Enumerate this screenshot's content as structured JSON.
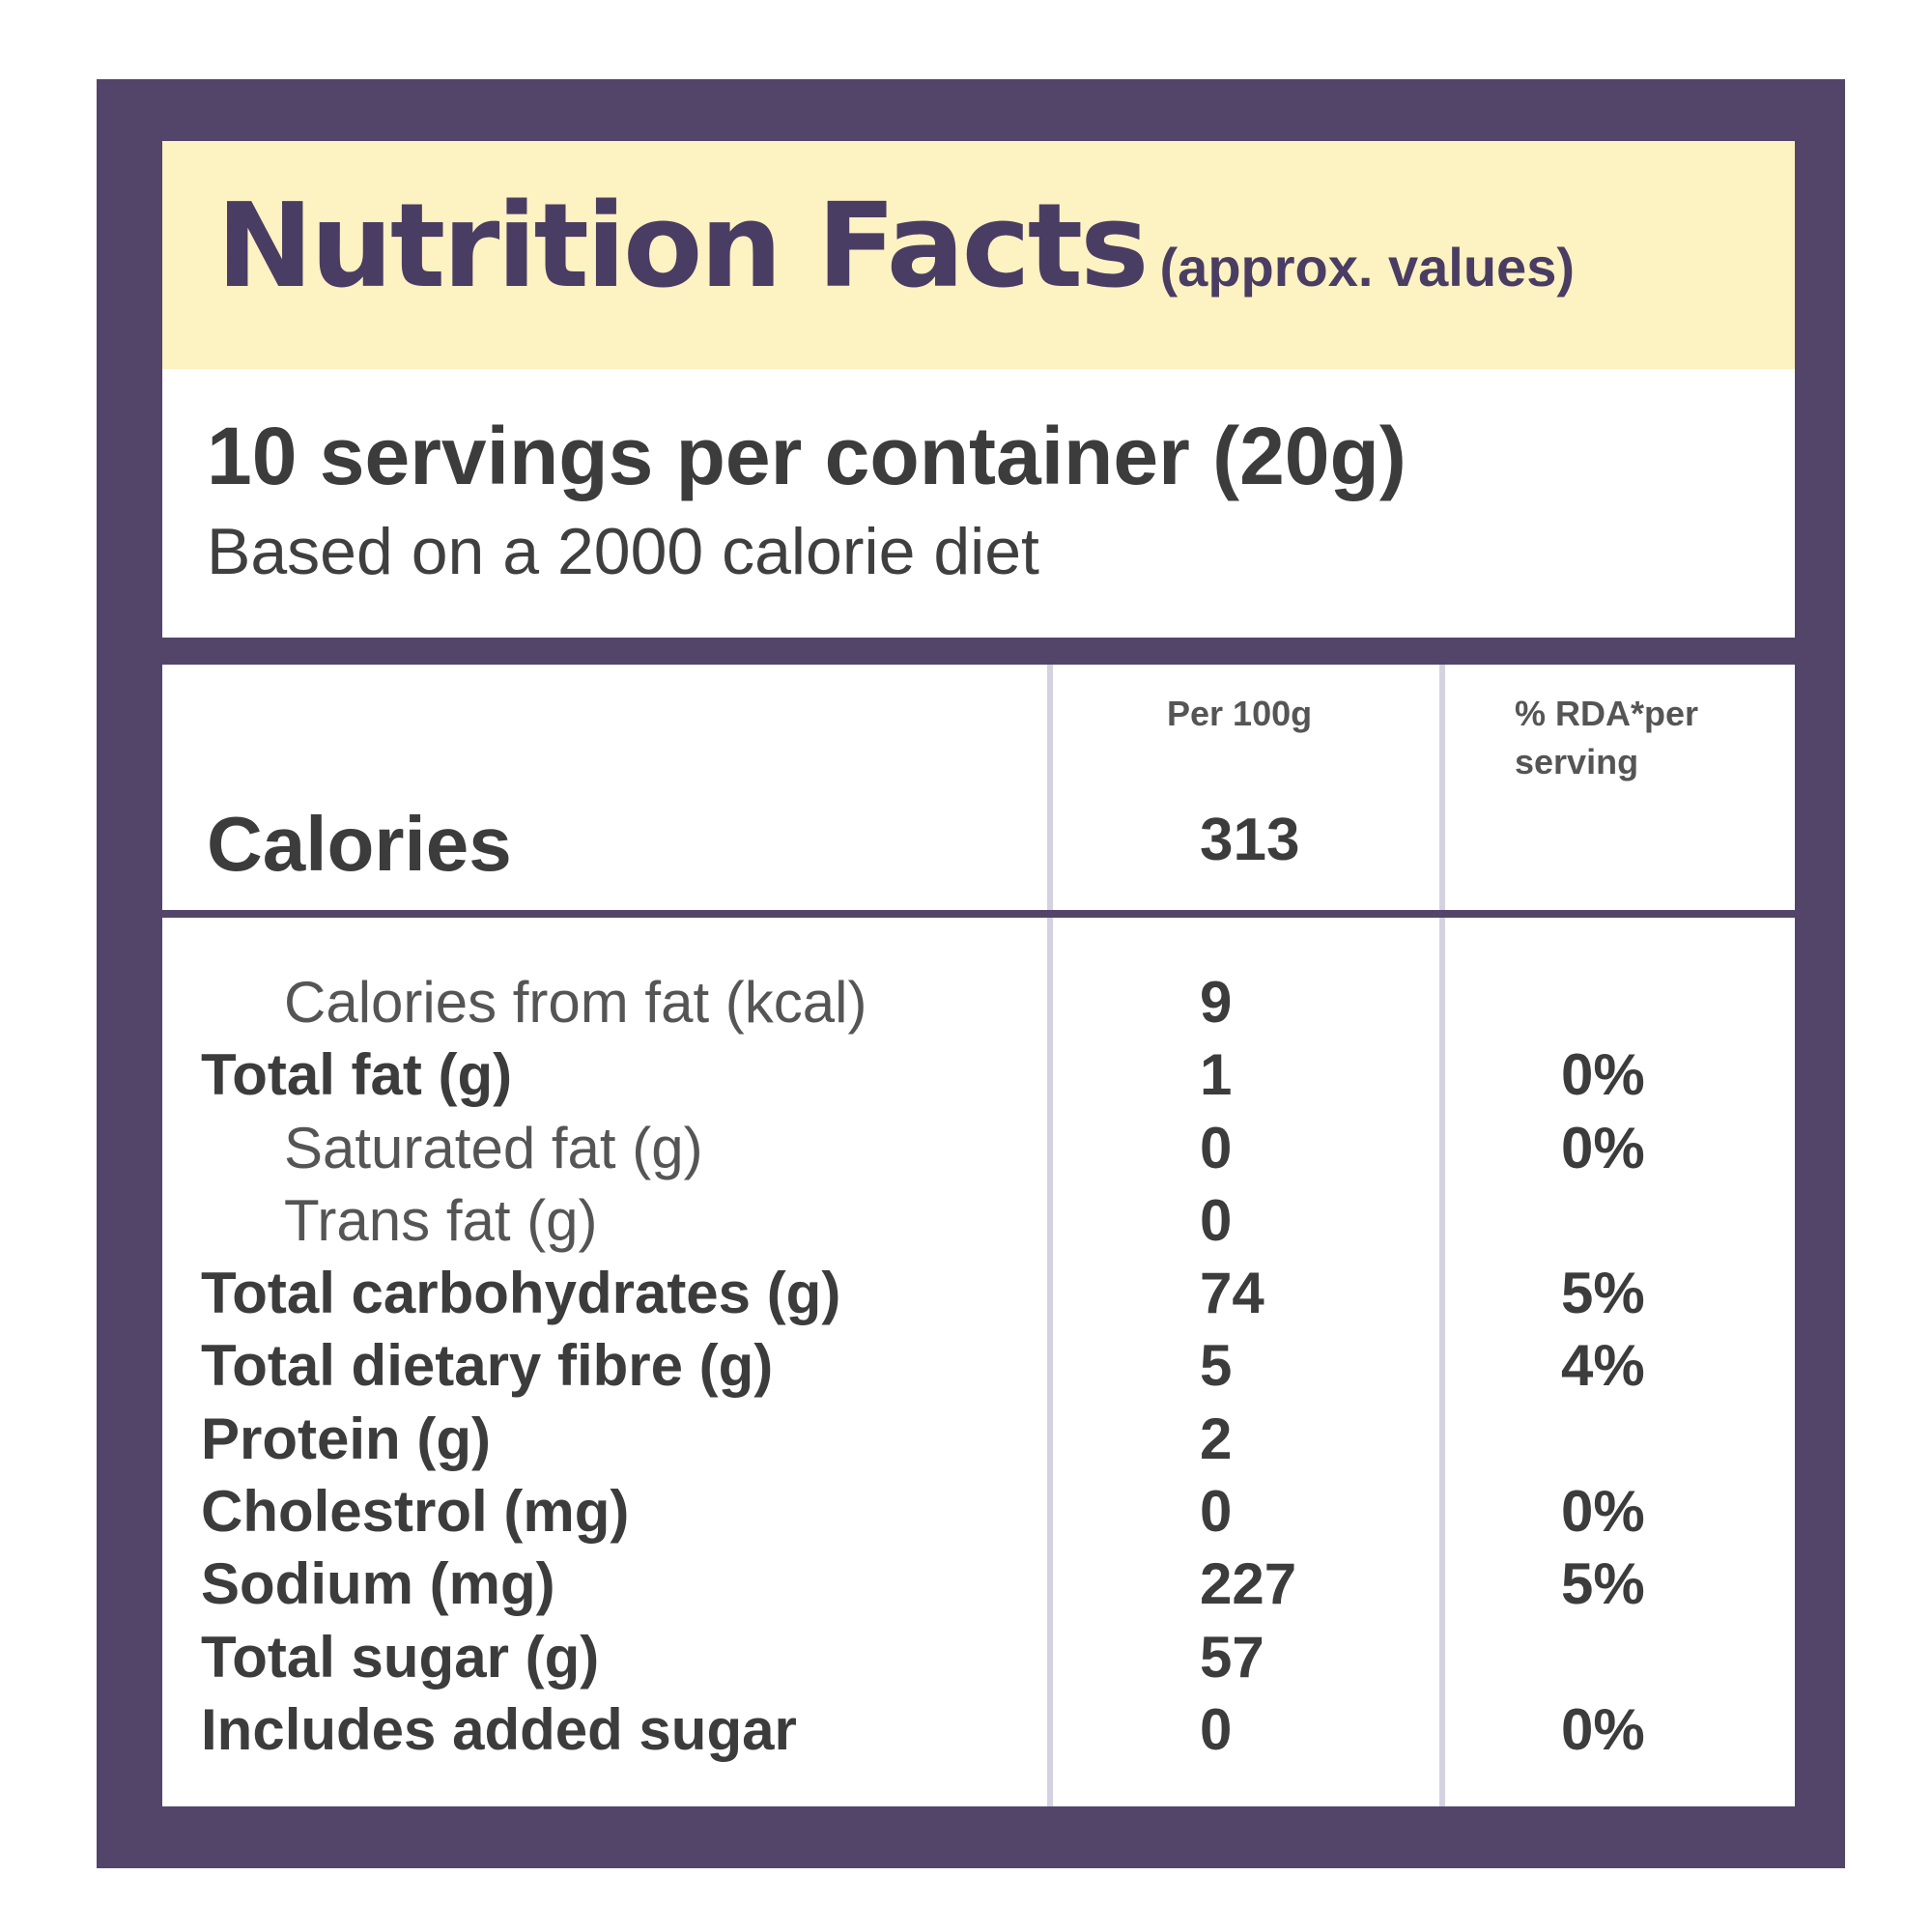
{
  "colors": {
    "frame": "#53456a",
    "title_band": "#fdf2c1",
    "title_text": "#4a3d63",
    "body_text": "#3c3c3c",
    "column_divider": "#d4d2e0"
  },
  "header": {
    "title": "Nutrition Facts",
    "subtitle": "(approx. values)"
  },
  "serving": {
    "servings_text": "10 servings per container (20g)",
    "diet_basis": "Based on a 2000 calorie diet"
  },
  "columns": {
    "per_100g": "Per 100g",
    "rda_line1": "% RDA*per",
    "rda_line2": "serving"
  },
  "calories": {
    "label": "Calories",
    "per_100g": "313"
  },
  "nutrients": [
    {
      "label": "Calories from fat (kcal)",
      "per_100g": "9",
      "rda": "",
      "indent": true
    },
    {
      "label": "Total fat (g)",
      "per_100g": "1",
      "rda": "0%",
      "indent": false
    },
    {
      "label": "Saturated fat (g)",
      "per_100g": "0",
      "rda": "0%",
      "indent": true
    },
    {
      "label": "Trans fat (g)",
      "per_100g": "0",
      "rda": "",
      "indent": true
    },
    {
      "label": "Total carbohydrates (g)",
      "per_100g": "74",
      "rda": "5%",
      "indent": false
    },
    {
      "label": "Total dietary fibre (g)",
      "per_100g": "5",
      "rda": "4%",
      "indent": false
    },
    {
      "label": "Protein (g)",
      "per_100g": "2",
      "rda": "",
      "indent": false
    },
    {
      "label": "Cholestrol (mg)",
      "per_100g": "0",
      "rda": "0%",
      "indent": false
    },
    {
      "label": "Sodium (mg)",
      "per_100g": "227",
      "rda": "5%",
      "indent": false
    },
    {
      "label": "Total sugar (g)",
      "per_100g": "57",
      "rda": "",
      "indent": false
    },
    {
      "label": "Includes added sugar",
      "per_100g": "0",
      "rda": "0%",
      "indent": false
    }
  ]
}
